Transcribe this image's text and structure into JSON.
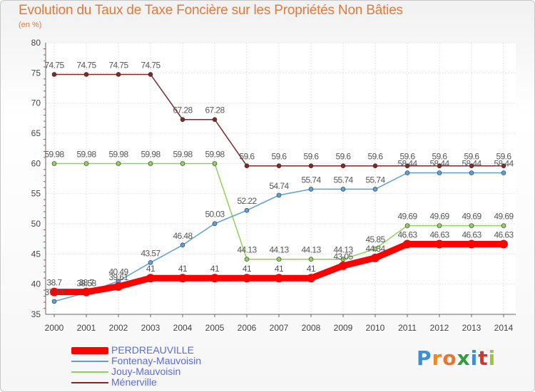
{
  "chart_data": {
    "type": "line",
    "title": "Evolution du Taux de Taxe Foncière sur les Propriétés Non Bâties",
    "ylabel": "(en %)",
    "xlabel": "",
    "ylim": [
      35,
      80
    ],
    "yticks": [
      35,
      40,
      45,
      50,
      55,
      60,
      65,
      70,
      75,
      80
    ],
    "grid": true,
    "categories": [
      "2000",
      "2001",
      "2002",
      "2003",
      "2004",
      "2005",
      "2006",
      "2007",
      "2008",
      "2009",
      "2010",
      "2011",
      "2012",
      "2013",
      "2014"
    ],
    "series": [
      {
        "name": "PERDREAUVILLE",
        "color": "#ff0000",
        "values": [
          38.7,
          38.7,
          39.61,
          41,
          41,
          41,
          41,
          41,
          41,
          43.05,
          44.34,
          46.63,
          46.63,
          46.63,
          46.63
        ],
        "labels": [
          "38.7",
          "38.7",
          "39.61",
          "41",
          "41",
          "41",
          "41",
          "41",
          "41",
          "43.05",
          "44.34",
          "46.63",
          "46.63",
          "46.63",
          "46.63"
        ]
      },
      {
        "name": "Fontenay-Mauvoisin",
        "color": "#5da0d6",
        "values": [
          37.14,
          38.58,
          40.49,
          43.57,
          46.48,
          50.03,
          52.22,
          54.74,
          55.74,
          55.74,
          55.74,
          58.44,
          58.44,
          58.44,
          58.44
        ],
        "labels": [
          "37.14",
          "38.58",
          "40.49",
          "43.57",
          "46.48",
          "50.03",
          "52.22",
          "54.74",
          "55.74",
          "55.74",
          "55.74",
          "58.44",
          "58.44",
          "58.44",
          "58.44"
        ]
      },
      {
        "name": "Jouy-Mauvoisin",
        "color": "#8fd25a",
        "values": [
          59.98,
          59.98,
          59.98,
          59.98,
          59.98,
          59.98,
          44.13,
          44.13,
          44.13,
          44.13,
          45.85,
          49.69,
          49.69,
          49.69,
          49.69
        ],
        "labels": [
          "59.98",
          "59.98",
          "59.98",
          "59.98",
          "59.98",
          "59.98",
          "44.13",
          "44.13",
          "44.13",
          "44.13",
          "45.85",
          "49.69",
          "49.69",
          "49.69",
          "49.69"
        ]
      },
      {
        "name": "Ménerville",
        "color": "#7b2a2a",
        "values": [
          74.75,
          74.75,
          74.75,
          74.75,
          67.28,
          67.28,
          59.6,
          59.6,
          59.6,
          59.6,
          59.6,
          59.6,
          59.6,
          59.6,
          59.6
        ],
        "labels": [
          "74.75",
          "74.75",
          "74.75",
          "74.75",
          "67.28",
          "67.28",
          "59.6",
          "59.6",
          "59.6",
          "59.6",
          "59.6",
          "59.6",
          "59.6",
          "59.6",
          "59.6"
        ]
      }
    ],
    "legend": [
      "PERDREAUVILLE",
      "Fontenay-Mauvoisin",
      "Jouy-Mauvoisin",
      "Ménerville"
    ]
  },
  "branding": {
    "logo_letters": [
      "P",
      "r",
      "o",
      "x",
      "i",
      "t",
      "i"
    ]
  }
}
